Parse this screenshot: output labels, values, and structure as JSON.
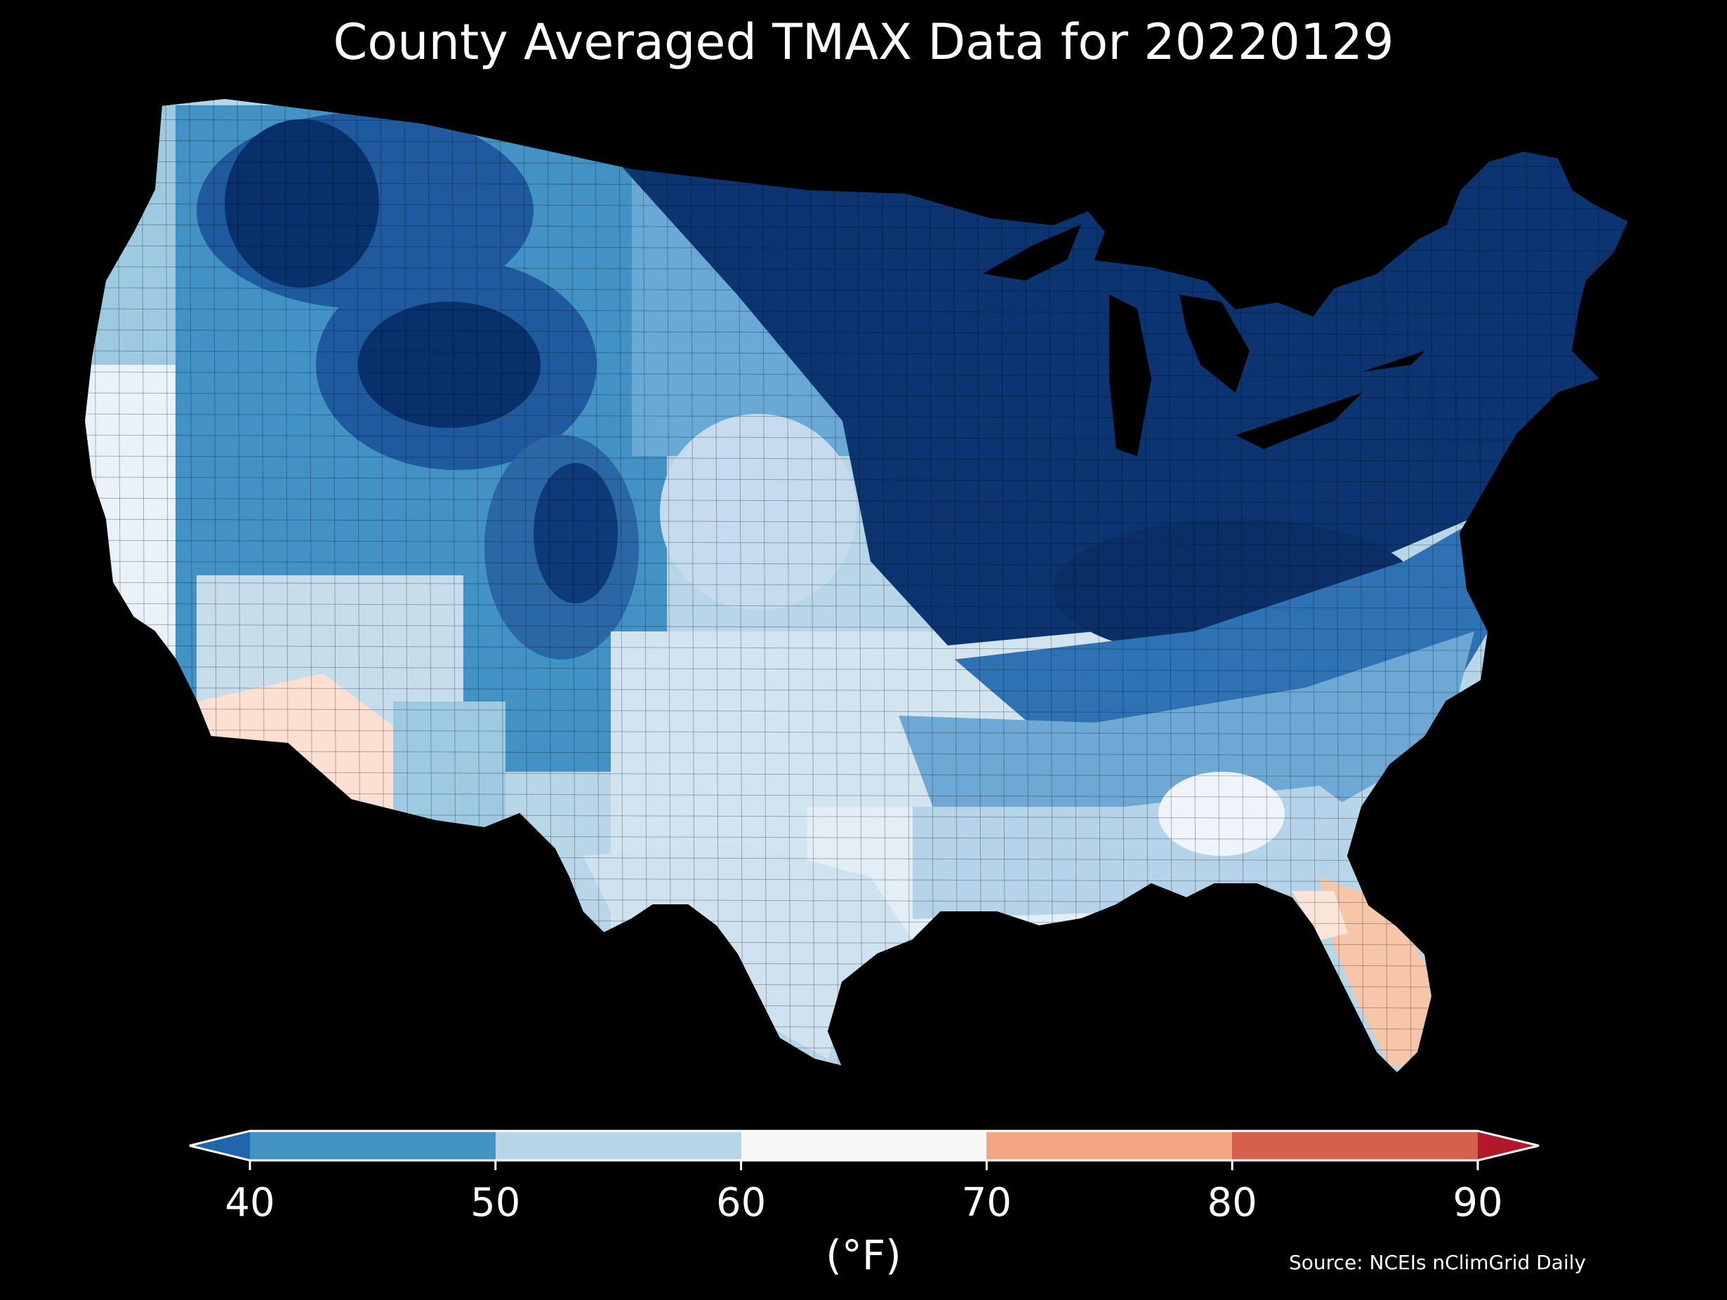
{
  "title": "County Averaged TMAX Data for 20220129",
  "colorbar": {
    "ticks": [
      "40",
      "50",
      "60",
      "70",
      "80",
      "90"
    ],
    "units": "(°F)",
    "bins": [
      {
        "from": null,
        "to": 40,
        "color": "#2166ac"
      },
      {
        "from": 40,
        "to": 50,
        "color": "#4393c3"
      },
      {
        "from": 50,
        "to": 60,
        "color": "#b7d6e8"
      },
      {
        "from": 60,
        "to": 70,
        "color": "#f7f7f7"
      },
      {
        "from": 70,
        "to": 80,
        "color": "#f4a582"
      },
      {
        "from": 80,
        "to": 90,
        "color": "#d6604d"
      },
      {
        "from": 90,
        "to": null,
        "color": "#b2182b"
      }
    ],
    "extend": "both"
  },
  "source": "Source: NCEIs nClimGrid Daily",
  "map": {
    "region": "contiguous-us-counties",
    "colors": {
      "very_cold": "#08306b",
      "cold": "#1f5a9e",
      "cool": "#4292c6",
      "mild": "#9ecae1",
      "light": "#d6e6f2",
      "near_60s": "#f3f6fa",
      "warm": "#fde0d2",
      "warmer": "#f7c0a4",
      "water": "#000000"
    }
  }
}
